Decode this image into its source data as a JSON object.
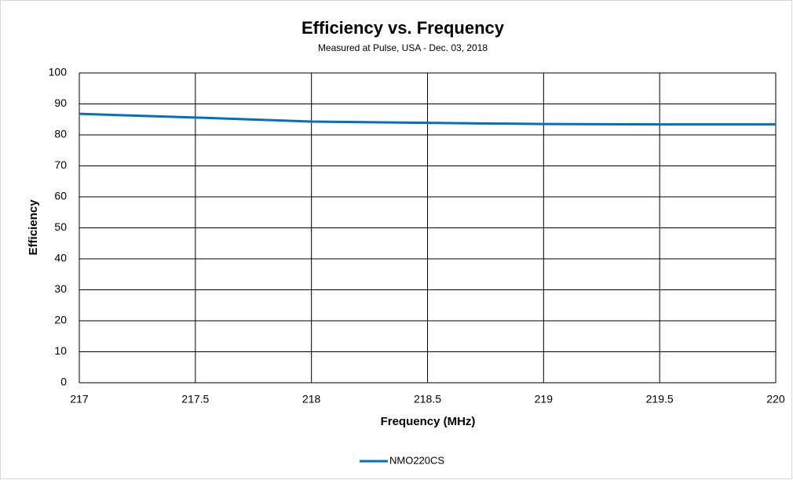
{
  "chart_data": {
    "type": "line",
    "title": "Efficiency vs. Frequency",
    "subtitle": "Measured at Pulse, USA - Dec. 03, 2018",
    "x_label": "Frequency (MHz)",
    "y_label": "Efficiency",
    "x": [
      217,
      217.5,
      218,
      218.5,
      219,
      219.5,
      220
    ],
    "series": [
      {
        "name": "NMO220CS",
        "color": "#0070c0",
        "values": [
          86.8,
          85.6,
          84.3,
          83.9,
          83.5,
          83.4,
          83.4
        ]
      }
    ],
    "xlim": [
      217,
      220
    ],
    "xticks": [
      217,
      217.5,
      218,
      218.5,
      219,
      219.5,
      220
    ],
    "ylim": [
      0,
      100
    ],
    "yticks": [
      0,
      10,
      20,
      30,
      40,
      50,
      60,
      70,
      80,
      90,
      100
    ],
    "grid": true,
    "legend": "bottom"
  }
}
